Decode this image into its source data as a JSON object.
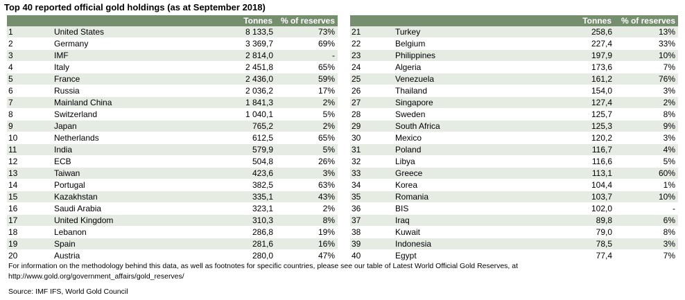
{
  "title": "Top 40 reported official gold holdings (as at September 2018)",
  "headers": {
    "tonnes": "Tonnes",
    "pct": "% of reserves"
  },
  "left_rows": [
    {
      "rank": "1",
      "country": "United States",
      "tonnes": "8 133,5",
      "pct": "73%"
    },
    {
      "rank": "2",
      "country": "Germany",
      "tonnes": "3 369,7",
      "pct": "69%"
    },
    {
      "rank": "3",
      "country": "IMF",
      "tonnes": "2 814,0",
      "pct": "-"
    },
    {
      "rank": "4",
      "country": "Italy",
      "tonnes": "2 451,8",
      "pct": "65%"
    },
    {
      "rank": "5",
      "country": "France",
      "tonnes": "2 436,0",
      "pct": "59%"
    },
    {
      "rank": "6",
      "country": "Russia",
      "tonnes": "2 036,2",
      "pct": "17%"
    },
    {
      "rank": "7",
      "country": "Mainland China",
      "tonnes": "1 841,3",
      "pct": "2%"
    },
    {
      "rank": "8",
      "country": "Switzerland",
      "tonnes": "1 040,1",
      "pct": "5%"
    },
    {
      "rank": "9",
      "country": "Japan",
      "tonnes": "765,2",
      "pct": "2%"
    },
    {
      "rank": "10",
      "country": "Netherlands",
      "tonnes": "612,5",
      "pct": "65%"
    },
    {
      "rank": "11",
      "country": "India",
      "tonnes": "579,9",
      "pct": "5%"
    },
    {
      "rank": "12",
      "country": "ECB",
      "tonnes": "504,8",
      "pct": "26%"
    },
    {
      "rank": "13",
      "country": "Taiwan",
      "tonnes": "423,6",
      "pct": "3%"
    },
    {
      "rank": "14",
      "country": "Portugal",
      "tonnes": "382,5",
      "pct": "63%"
    },
    {
      "rank": "15",
      "country": "Kazakhstan",
      "tonnes": "335,1",
      "pct": "43%"
    },
    {
      "rank": "16",
      "country": "Saudi Arabia",
      "tonnes": "323,1",
      "pct": "2%"
    },
    {
      "rank": "17",
      "country": "United Kingdom",
      "tonnes": "310,3",
      "pct": "8%"
    },
    {
      "rank": "18",
      "country": "Lebanon",
      "tonnes": "286,8",
      "pct": "19%"
    },
    {
      "rank": "19",
      "country": "Spain",
      "tonnes": "281,6",
      "pct": "16%"
    },
    {
      "rank": "20",
      "country": "Austria",
      "tonnes": "280,0",
      "pct": "47%"
    }
  ],
  "right_rows": [
    {
      "rank": "21",
      "country": "Turkey",
      "tonnes": "258,6",
      "pct": "13%"
    },
    {
      "rank": "22",
      "country": "Belgium",
      "tonnes": "227,4",
      "pct": "33%"
    },
    {
      "rank": "23",
      "country": "Philippines",
      "tonnes": "197,9",
      "pct": "10%"
    },
    {
      "rank": "24",
      "country": "Algeria",
      "tonnes": "173,6",
      "pct": "7%"
    },
    {
      "rank": "25",
      "country": "Venezuela",
      "tonnes": "161,2",
      "pct": "76%"
    },
    {
      "rank": "26",
      "country": "Thailand",
      "tonnes": "154,0",
      "pct": "3%"
    },
    {
      "rank": "27",
      "country": "Singapore",
      "tonnes": "127,4",
      "pct": "2%"
    },
    {
      "rank": "28",
      "country": "Sweden",
      "tonnes": "125,7",
      "pct": "8%"
    },
    {
      "rank": "29",
      "country": "South Africa",
      "tonnes": "125,3",
      "pct": "9%"
    },
    {
      "rank": "30",
      "country": "Mexico",
      "tonnes": "120,2",
      "pct": "3%"
    },
    {
      "rank": "31",
      "country": "Poland",
      "tonnes": "116,7",
      "pct": "4%"
    },
    {
      "rank": "32",
      "country": "Libya",
      "tonnes": "116,6",
      "pct": "5%"
    },
    {
      "rank": "33",
      "country": "Greece",
      "tonnes": "113,1",
      "pct": "60%"
    },
    {
      "rank": "34",
      "country": "Korea",
      "tonnes": "104,4",
      "pct": "1%"
    },
    {
      "rank": "35",
      "country": "Romania",
      "tonnes": "103,7",
      "pct": "10%"
    },
    {
      "rank": "36",
      "country": "BIS",
      "tonnes": "102,0",
      "pct": "-"
    },
    {
      "rank": "37",
      "country": "Iraq",
      "tonnes": "89,8",
      "pct": "6%"
    },
    {
      "rank": "38",
      "country": "Kuwait",
      "tonnes": "79,0",
      "pct": "8%"
    },
    {
      "rank": "39",
      "country": "Indonesia",
      "tonnes": "78,5",
      "pct": "3%"
    },
    {
      "rank": "40",
      "country": "Egypt",
      "tonnes": "77,4",
      "pct": "7%"
    }
  ],
  "notes": "For information on the methodology behind this data, as well as footnotes for specific countries, please see our table of Latest World Official Gold Reserves, at http://www.gold.org/government_affairs/gold_reserves/",
  "source": "Source: IMF IFS, World Gold Council",
  "colors": {
    "header_bg": "#758e6e",
    "row_stripe": "#e6ebe4"
  }
}
